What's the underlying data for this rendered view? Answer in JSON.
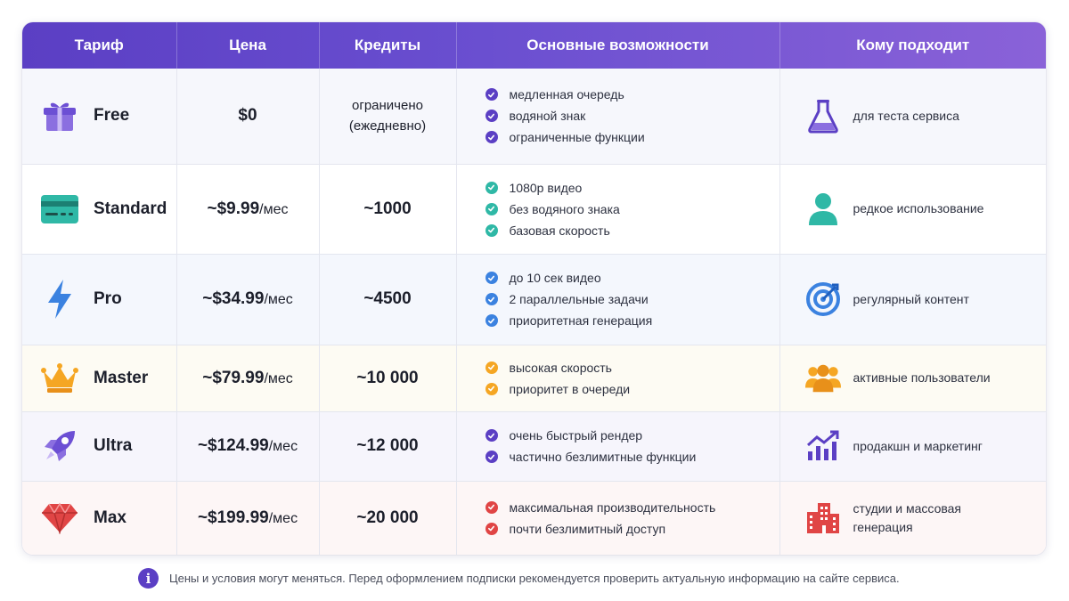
{
  "header": {
    "col_plan": "Тариф",
    "col_price": "Цена",
    "col_credits": "Кредиты",
    "col_features": "Основные возможности",
    "col_fit": "Кому подходит"
  },
  "rows": [
    {
      "plan": "Free",
      "plan_icon": "gift-icon",
      "price": "$0",
      "price_suffix": "",
      "credits_line1": "ограничено",
      "credits_line2": "(ежедневно)",
      "check_color": "#5b3fc4",
      "features": [
        "медленная очередь",
        "водяной знак",
        "ограниченные функции"
      ],
      "fit_icon": "flask-icon",
      "fit": "для теста сервиса"
    },
    {
      "plan": "Standard",
      "plan_icon": "credit-card-icon",
      "price": "~$9.99",
      "price_suffix": "/мес",
      "credits": "~1000",
      "check_color": "#2fb8a6",
      "features": [
        "1080p видео",
        "без водяного знака",
        "базовая скорость"
      ],
      "fit_icon": "user-icon",
      "fit": "редкое использование"
    },
    {
      "plan": "Pro",
      "plan_icon": "lightning-icon",
      "price": "~$34.99",
      "price_suffix": "/мес",
      "credits": "~4500",
      "check_color": "#3b82e0",
      "features": [
        "до 10 сек видео",
        "2 параллельные задачи",
        "приоритетная генерация"
      ],
      "fit_icon": "target-icon",
      "fit": "регулярный контент"
    },
    {
      "plan": "Master",
      "plan_icon": "crown-icon",
      "price": "~$79.99",
      "price_suffix": "/мес",
      "credits": "~10 000",
      "check_color": "#f5a623",
      "features": [
        "высокая скорость",
        "приоритет в очереди"
      ],
      "fit_icon": "users-group-icon",
      "fit": "активные пользователи"
    },
    {
      "plan": "Ultra",
      "plan_icon": "rocket-icon",
      "price": "~$124.99",
      "price_suffix": "/мес",
      "credits": "~12 000",
      "check_color": "#5b3fc4",
      "features": [
        "очень быстрый рендер",
        "частично безлимитные функции"
      ],
      "fit_icon": "growth-chart-icon",
      "fit": "продакшн и маркетинг"
    },
    {
      "plan": "Max",
      "plan_icon": "diamond-icon",
      "price": "~$199.99",
      "price_suffix": "/мес",
      "credits": "~20 000",
      "check_color": "#e04545",
      "features": [
        "максимальная производительность",
        "почти безлимитный доступ"
      ],
      "fit_icon": "buildings-icon",
      "fit_line1": "студии и массовая",
      "fit_line2": "генерация"
    }
  ],
  "footnote": {
    "icon": "info-icon",
    "icon_glyph": "i",
    "text": "Цены и условия могут меняться. Перед оформлением подписки рекомендуется проверить актуальную информацию на сайте сервиса."
  },
  "colors": {
    "header_start": "#5b3fc4",
    "header_end": "#8a62d8",
    "accent": "#5b3fc4"
  }
}
